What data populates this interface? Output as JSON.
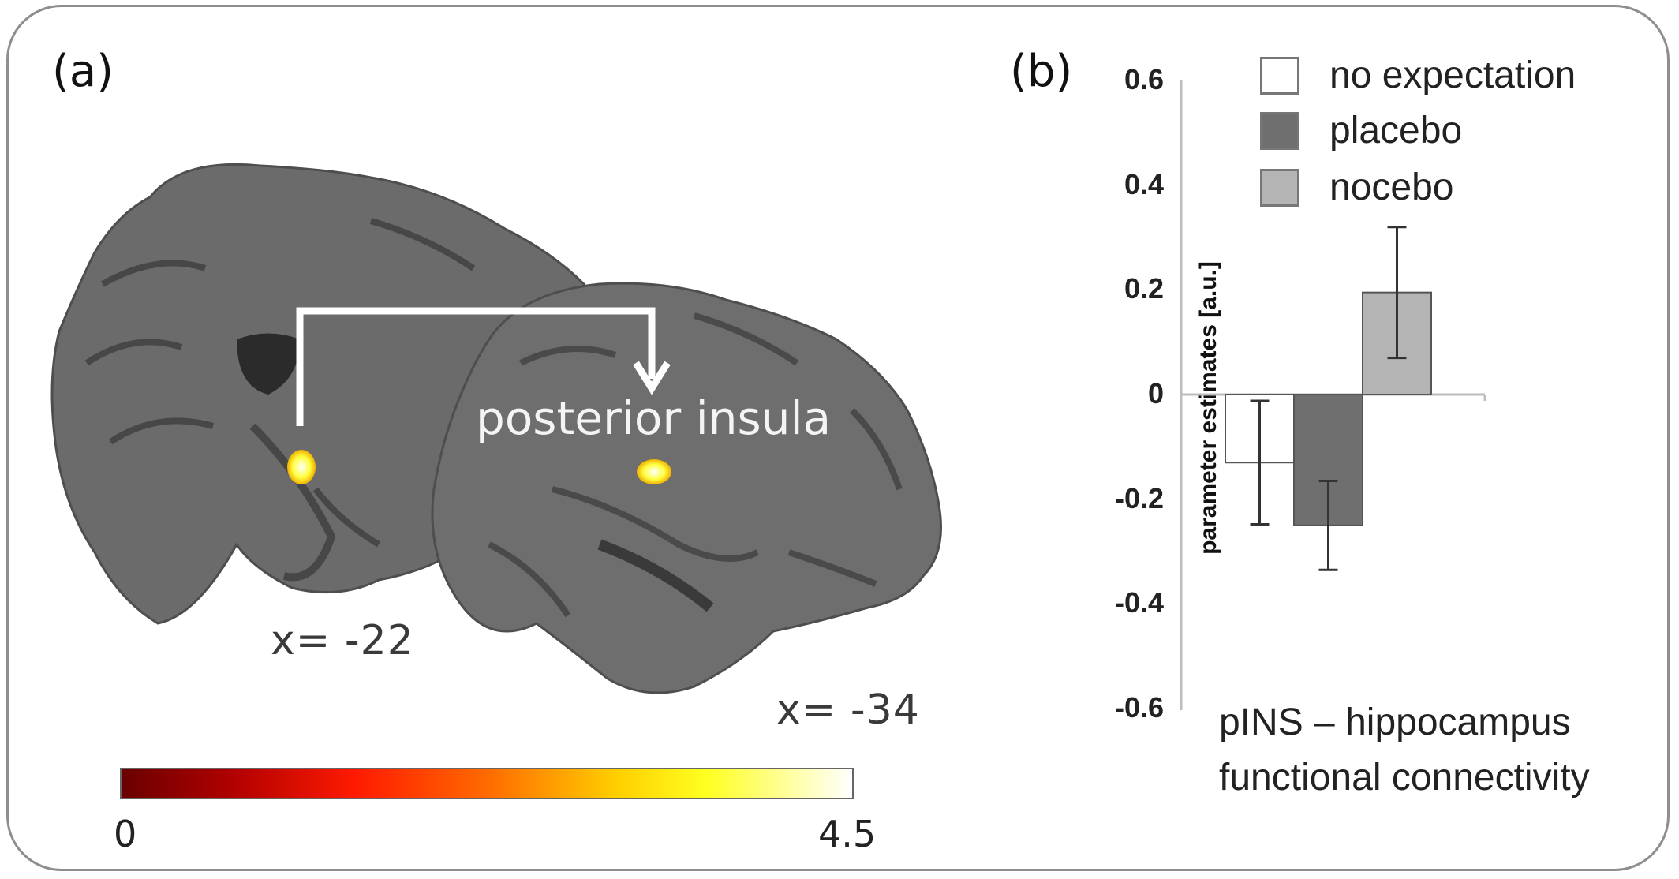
{
  "panel_a": {
    "label": "(a)",
    "region_label": "posterior insula",
    "slice_labels": [
      "x= -22",
      "x= -34"
    ],
    "colorbar": {
      "min": "0",
      "max": "4.5"
    }
  },
  "panel_b": {
    "label": "(b)",
    "caption_lines": [
      "pINS – hippocampus",
      "functional connectivity"
    ]
  },
  "chart_data": {
    "type": "bar",
    "categories": [
      "no expectation",
      "placebo",
      "nocebo"
    ],
    "values": [
      -0.13,
      -0.25,
      0.195
    ],
    "errors": [
      0.118,
      0.085,
      0.125
    ],
    "colors": [
      "#ffffff",
      "#6f6f6f",
      "#b4b4b4"
    ],
    "ylabel": "parameter estimates [a.u.]",
    "ylim": [
      -0.6,
      0.6
    ],
    "yticks": [
      "0.6",
      "0.4",
      "0.2",
      "0",
      "-0.2",
      "-0.4",
      "-0.6"
    ],
    "ytick_values": [
      0.6,
      0.4,
      0.2,
      0,
      -0.2,
      -0.4,
      -0.6
    ],
    "legend": [
      "no expectation",
      "placebo",
      "nocebo"
    ],
    "legend_position": "top-right"
  }
}
